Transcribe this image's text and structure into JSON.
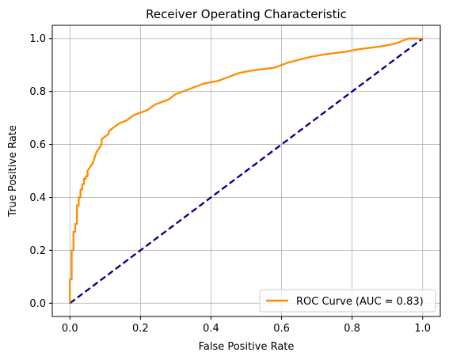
{
  "chart_data": {
    "type": "line",
    "title": "Receiver Operating Characteristic",
    "xlabel": "False Positive Rate",
    "ylabel": "True Positive Rate",
    "xlim": [
      -0.05,
      1.05
    ],
    "ylim": [
      -0.05,
      1.05
    ],
    "xticks": [
      0.0,
      0.2,
      0.4,
      0.6,
      0.8,
      1.0
    ],
    "yticks": [
      0.0,
      0.2,
      0.4,
      0.6,
      0.8,
      1.0
    ],
    "xtick_labels": [
      "0.0",
      "0.2",
      "0.4",
      "0.6",
      "0.8",
      "1.0"
    ],
    "ytick_labels": [
      "0.0",
      "0.2",
      "0.4",
      "0.6",
      "0.8",
      "1.0"
    ],
    "grid": true,
    "legend_position": "lower-right",
    "series": [
      {
        "name": "ROC Curve (AUC = 0.83)",
        "color": "#ff8c00",
        "style": "solid",
        "x": [
          0.0,
          0.0,
          0.005,
          0.005,
          0.01,
          0.01,
          0.015,
          0.015,
          0.02,
          0.02,
          0.025,
          0.025,
          0.03,
          0.03,
          0.035,
          0.035,
          0.04,
          0.04,
          0.045,
          0.045,
          0.05,
          0.05,
          0.055,
          0.06,
          0.065,
          0.07,
          0.075,
          0.08,
          0.085,
          0.09,
          0.09,
          0.1,
          0.11,
          0.11,
          0.12,
          0.13,
          0.14,
          0.15,
          0.16,
          0.17,
          0.18,
          0.2,
          0.22,
          0.24,
          0.26,
          0.28,
          0.3,
          0.32,
          0.34,
          0.36,
          0.38,
          0.4,
          0.42,
          0.44,
          0.46,
          0.48,
          0.5,
          0.52,
          0.55,
          0.58,
          0.6,
          0.62,
          0.65,
          0.68,
          0.7,
          0.72,
          0.75,
          0.78,
          0.8,
          0.82,
          0.85,
          0.88,
          0.9,
          0.92,
          0.94,
          0.96,
          1.0
        ],
        "y": [
          0.0,
          0.09,
          0.09,
          0.2,
          0.2,
          0.27,
          0.27,
          0.3,
          0.3,
          0.37,
          0.37,
          0.4,
          0.4,
          0.43,
          0.43,
          0.45,
          0.45,
          0.47,
          0.47,
          0.48,
          0.48,
          0.5,
          0.51,
          0.52,
          0.53,
          0.55,
          0.57,
          0.58,
          0.59,
          0.6,
          0.62,
          0.63,
          0.64,
          0.65,
          0.66,
          0.67,
          0.68,
          0.685,
          0.69,
          0.7,
          0.71,
          0.72,
          0.73,
          0.75,
          0.76,
          0.77,
          0.79,
          0.8,
          0.81,
          0.82,
          0.83,
          0.835,
          0.84,
          0.85,
          0.86,
          0.87,
          0.875,
          0.88,
          0.885,
          0.89,
          0.9,
          0.91,
          0.92,
          0.93,
          0.935,
          0.94,
          0.945,
          0.95,
          0.955,
          0.96,
          0.965,
          0.97,
          0.975,
          0.98,
          0.99,
          1.0,
          1.0
        ]
      },
      {
        "name": "",
        "color": "#000080",
        "style": "dashed",
        "x": [
          0.0,
          1.0
        ],
        "y": [
          0.0,
          1.0
        ]
      }
    ]
  }
}
